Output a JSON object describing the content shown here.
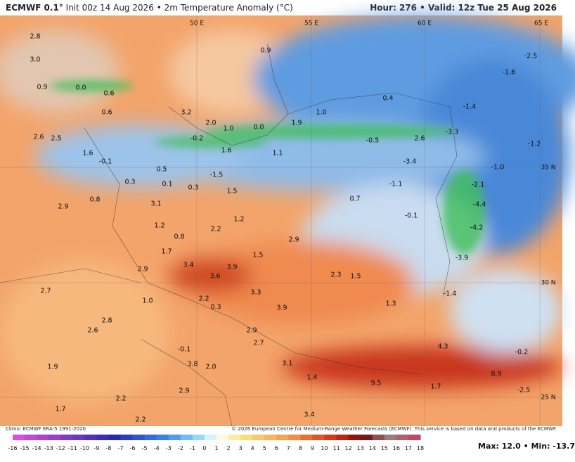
{
  "header": {
    "model": "ECMWF 0.1°",
    "title": "Init 00z 14 Aug 2026 • 2m Temperature Anomaly (°C)",
    "valid": "Hour: 276 • Valid: 12z Tue 25 Aug 2026"
  },
  "map": {
    "coords": [
      "50 E",
      "55 E",
      "60 E",
      "65 E",
      "35 N",
      "30 N",
      "25 N"
    ],
    "labels": [
      "2.8",
      "3.0",
      "0.9",
      "0.0",
      "0.6",
      "0.6",
      "3.2",
      "2.0",
      "1.0",
      "0.0",
      "1.9",
      "1.0",
      "0.4",
      "-1.4",
      "-1.6",
      "-2.5",
      "0.9",
      "2.6",
      "2.5",
      "1.6",
      "-0.1",
      "-0.2",
      "1.6",
      "1.1",
      "-0.5",
      "2.6",
      "-3.3",
      "-1.2",
      "-3.4",
      "-1.0",
      "-1.5",
      "0.5",
      "0.3",
      "0.1",
      "0.3",
      "1.5",
      "-1.1",
      "-2.1",
      "0.8",
      "2.9",
      "3.1",
      "0.7",
      "-4.4",
      "1.2",
      "1.2",
      "-0.1",
      "-4.2",
      "0.8",
      "2.2",
      "2.9",
      "1.7",
      "1.5",
      "-3.9",
      "3.4",
      "3.9",
      "2.9",
      "3.6",
      "2.3",
      "1.5",
      "2.7",
      "1.0",
      "2.2",
      "0.3",
      "3.3",
      "3.9",
      "1.3",
      "-1.4",
      "2.6",
      "2.8",
      "2.9",
      "2.7",
      "4.3",
      "-0.2",
      "-0.1",
      "3.8",
      "2.0",
      "3.1",
      "1.9",
      "1.4",
      "9.5",
      "8.9",
      "1.7",
      "2.9",
      "2.2",
      "2.2",
      "1.7",
      "-2.5",
      "3.4"
    ]
  },
  "colorbar": {
    "ticks": [
      -16,
      -15,
      -14,
      -13,
      -12,
      -11,
      -10,
      -9,
      -8,
      -7,
      -6,
      -5,
      -4,
      -3,
      -2,
      -1,
      0,
      1,
      2,
      3,
      4,
      5,
      6,
      7,
      8,
      9,
      10,
      11,
      12,
      13,
      14,
      15,
      16,
      17,
      18
    ]
  },
  "footer": {
    "climo": "Climo: ECMWF ERA-5 1991-2020",
    "copyright": "© 2026 European Centre for Medium-Range Weather Forecasts (ECMWF). This service is based on data and products of the ECMWF.",
    "maxmin": "Max: 12.0 • Min: -13.7"
  }
}
